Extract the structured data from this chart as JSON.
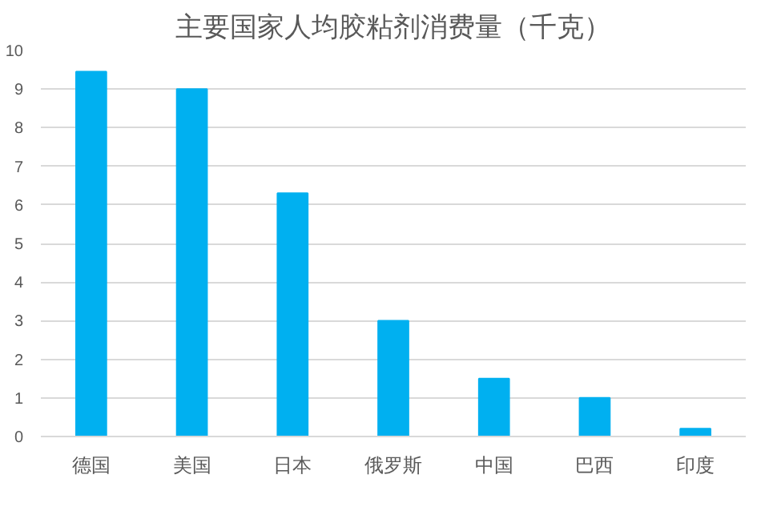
{
  "chart_data": {
    "type": "bar",
    "title": "主要国家人均胶粘剂消费量（千克）",
    "categories": [
      "德国",
      "美国",
      "日本",
      "俄罗斯",
      "中国",
      "巴西",
      "印度"
    ],
    "values": [
      9.45,
      9.0,
      6.3,
      3.0,
      1.5,
      1.0,
      0.2
    ],
    "color": "#00b0f0",
    "ylim": [
      0,
      10
    ],
    "yticks": [
      0,
      1,
      2,
      3,
      4,
      5,
      6,
      7,
      8,
      9,
      10
    ],
    "grid": "y"
  }
}
